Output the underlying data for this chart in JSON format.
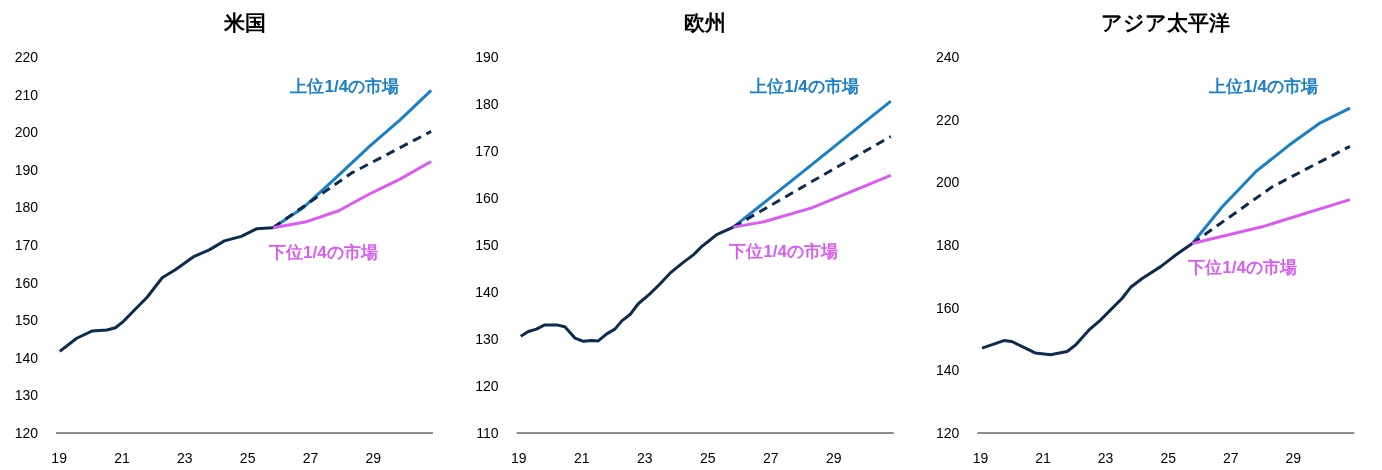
{
  "chart_data": [
    {
      "type": "line",
      "title": "米国",
      "xlim": [
        18.9,
        30.9
      ],
      "xticks": [
        19,
        21,
        23,
        25,
        27,
        29
      ],
      "ylim": [
        120,
        220
      ],
      "yticks": [
        120,
        130,
        140,
        150,
        160,
        170,
        180,
        190,
        200,
        210,
        220
      ],
      "series": [
        {
          "color": "#0d2a4f",
          "line_style": "solid",
          "x": [
            19.02,
            19.56,
            20.04,
            20.52,
            20.79,
            21.05,
            21.43,
            21.8,
            22.28,
            22.71,
            23.3,
            23.78,
            24.26,
            24.8,
            25.28,
            25.81
          ],
          "values": [
            141.7,
            145.2,
            147.1,
            147.4,
            148.0,
            149.7,
            153.0,
            156.1,
            161.3,
            163.5,
            167.0,
            168.7,
            171.1,
            172.3,
            174.3,
            174.6
          ]
        },
        {
          "name": "上位1/4の市場",
          "color": "#1a7fc4",
          "line_style": "solid",
          "x": [
            25.81,
            26.78,
            27.8,
            28.86,
            29.88,
            30.84
          ],
          "values": [
            174.6,
            180.0,
            187.8,
            196.1,
            203.5,
            211.1
          ]
        },
        {
          "color": "#0d2a4f",
          "line_style": "dashed",
          "x": [
            25.81,
            28.3,
            30.84
          ],
          "values": [
            174.6,
            189.1,
            200.2
          ]
        },
        {
          "name": "下位1/4の市場",
          "color": "#d85cf0",
          "line_style": "solid",
          "x": [
            25.81,
            26.83,
            27.9,
            28.86,
            29.82,
            30.84
          ],
          "values": [
            174.6,
            176.1,
            179.1,
            183.5,
            187.4,
            192.2
          ]
        }
      ]
    },
    {
      "type": "line",
      "title": "欧州",
      "xlim": [
        18.93,
        30.9
      ],
      "xticks": [
        19,
        21,
        23,
        25,
        27,
        29
      ],
      "ylim": [
        110,
        190
      ],
      "yticks": [
        110,
        120,
        130,
        140,
        150,
        160,
        170,
        180,
        190
      ],
      "series": [
        {
          "color": "#0d2a4f",
          "line_style": "solid",
          "x": [
            19.06,
            19.3,
            19.56,
            19.82,
            20.2,
            20.46,
            20.78,
            21.05,
            21.31,
            21.52,
            21.79,
            22.05,
            22.26,
            22.53,
            22.79,
            23.16,
            23.48,
            23.8,
            24.22,
            24.54,
            24.81,
            25.02,
            25.28,
            25.81
          ],
          "values": [
            130.6,
            131.6,
            132.1,
            133.0,
            133.0,
            132.6,
            130.2,
            129.5,
            129.7,
            129.6,
            131.1,
            132.1,
            133.8,
            135.2,
            137.5,
            139.6,
            141.7,
            144.0,
            146.3,
            147.9,
            149.7,
            150.8,
            152.2,
            153.8
          ]
        },
        {
          "name": "上位1/4の市場",
          "color": "#1a7fc4",
          "line_style": "solid",
          "x": [
            25.81,
            28.3,
            30.81
          ],
          "values": [
            153.8,
            167.1,
            180.6
          ]
        },
        {
          "color": "#0d2a4f",
          "line_style": "dashed",
          "x": [
            25.81,
            28.3,
            30.81
          ],
          "values": [
            153.8,
            163.5,
            173.1
          ]
        },
        {
          "name": "下位1/4の市場",
          "color": "#d85cf0",
          "line_style": "solid",
          "x": [
            25.81,
            26.81,
            28.3,
            30.81
          ],
          "values": [
            153.8,
            155.0,
            157.9,
            164.8
          ]
        }
      ]
    },
    {
      "type": "line",
      "title": "アジア太平洋",
      "xlim": [
        18.9,
        30.95
      ],
      "xticks": [
        19,
        21,
        23,
        25,
        27,
        29
      ],
      "ylim": [
        120,
        240
      ],
      "yticks": [
        120,
        140,
        160,
        180,
        200,
        220,
        240
      ],
      "series": [
        {
          "color": "#0d2a4f",
          "line_style": "solid",
          "x": [
            19.05,
            19.75,
            20.0,
            20.44,
            20.76,
            21.24,
            21.77,
            22.04,
            22.47,
            22.79,
            23.16,
            23.53,
            23.8,
            24.18,
            24.76,
            25.24,
            25.77
          ],
          "values": [
            147.1,
            149.5,
            149.2,
            147.1,
            145.5,
            145.0,
            146.0,
            148.1,
            152.9,
            155.6,
            159.3,
            163.0,
            166.5,
            169.4,
            173.1,
            176.8,
            180.5
          ]
        },
        {
          "name": "上位1/4の市場",
          "color": "#1a7fc4",
          "line_style": "solid",
          "x": [
            25.77,
            26.73,
            27.8,
            28.87,
            29.83,
            30.81
          ],
          "values": [
            180.5,
            192.2,
            203.4,
            211.9,
            218.8,
            223.7
          ]
        },
        {
          "color": "#0d2a4f",
          "line_style": "dashed",
          "x": [
            25.77,
            28.33,
            30.81
          ],
          "values": [
            180.5,
            198.6,
            211.5
          ]
        },
        {
          "name": "下位1/4の市場",
          "color": "#d85cf0",
          "line_style": "solid",
          "x": [
            25.77,
            28.0,
            30.81
          ],
          "values": [
            180.5,
            185.8,
            194.5
          ]
        }
      ]
    }
  ]
}
